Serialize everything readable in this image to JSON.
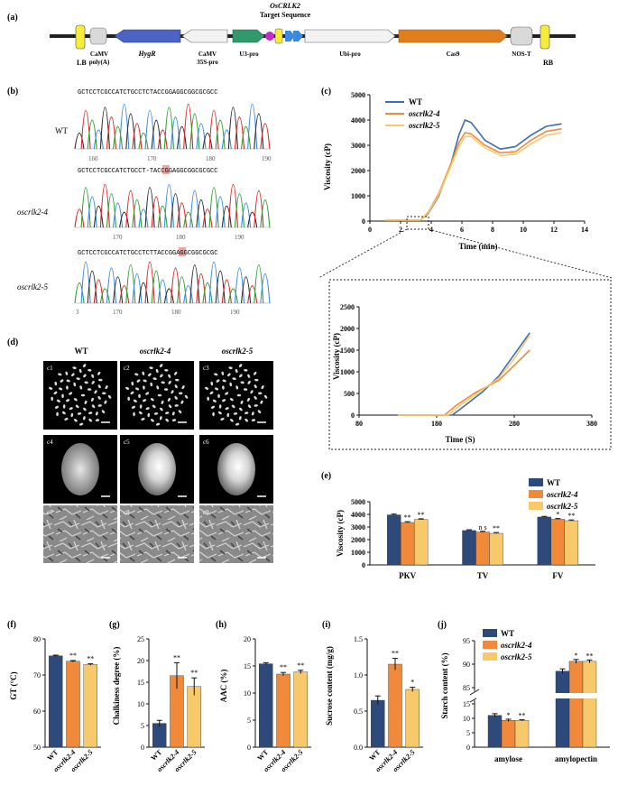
{
  "panel_labels": {
    "a": "(a)",
    "b": "(b)",
    "c": "(c)",
    "d": "(d)",
    "e": "(e)",
    "f": "(f)",
    "g": "(g)",
    "h": "(h)",
    "i": "(i)",
    "j": "(j)"
  },
  "construct": {
    "title1": "OsCRLK2",
    "title2": "Target Sequence",
    "LB": "LB",
    "RB": "RB",
    "camv_polyA_1": "CaMV",
    "camv_polyA_2": "poly(A)",
    "hygr": "HygR",
    "camv35s_1": "CaMV",
    "camv35s_2": "35S-pro",
    "u3": "U3-pro",
    "ubi": "Ubi-pro",
    "cas9": "Cas9",
    "nost": "NOS-T"
  },
  "sequencing": {
    "rows": [
      {
        "label": "WT",
        "seq": "GCTCCTCGCCATCTGCCTCTACCGGAGGCGGCGCGCC",
        "ticks": [
          "160",
          "170",
          "180",
          "190"
        ]
      },
      {
        "label": "oscrlk2-4",
        "seq": "GCTCCTCGCCATCTGCCT-TACCGGAGGCGGCGCGCC",
        "mark": "-",
        "ticks": [
          "170",
          "180",
          "190"
        ]
      },
      {
        "label": "oscrlk2-5",
        "seq": "GCTCCTCGCCATCTGCCTCTTACCGGAGGCGGCGCGC",
        "mark": "T",
        "ticks": [
          "3",
          "170",
          "180",
          "190"
        ]
      }
    ]
  },
  "images": {
    "headers": [
      "WT",
      "oscrlk2-4",
      "oscrlk2-5"
    ],
    "tags": [
      "c1",
      "c2",
      "c3",
      "c4",
      "c5",
      "c6",
      "c7",
      "c8",
      "c9"
    ]
  },
  "chart_data": [
    {
      "id": "c",
      "type": "line",
      "xlabel": "Time (min)",
      "ylabel": "Viscosity (cP)",
      "xlim": [
        0,
        14
      ],
      "ylim": [
        0,
        5000
      ],
      "xticks": [
        "0",
        "2",
        "4",
        "6",
        "8",
        "10",
        "12",
        "14"
      ],
      "yticks": [
        "0",
        "1000",
        "2000",
        "3000",
        "4000",
        "5000"
      ],
      "legend": [
        "WT",
        "oscrlk2-4",
        "oscrlk2-5"
      ],
      "colors": [
        "#3a6db5",
        "#f08a3a",
        "#f7c96a"
      ],
      "series": [
        {
          "name": "WT",
          "x": [
            1,
            3.3,
            3.8,
            4.5,
            5.3,
            5.8,
            6.2,
            6.6,
            7.5,
            8.5,
            9.5,
            10.5,
            11.5,
            12.5
          ],
          "y": [
            40,
            40,
            300,
            1000,
            2300,
            3400,
            4000,
            3900,
            3200,
            2850,
            2950,
            3400,
            3750,
            3850
          ]
        },
        {
          "name": "oscrlk2-4",
          "x": [
            1,
            3.3,
            3.8,
            4.5,
            5.3,
            5.8,
            6.2,
            6.6,
            7.5,
            8.5,
            9.5,
            10.5,
            11.5,
            12.5
          ],
          "y": [
            40,
            40,
            350,
            1100,
            2300,
            3100,
            3500,
            3450,
            3000,
            2700,
            2750,
            3200,
            3550,
            3650
          ]
        },
        {
          "name": "oscrlk2-5",
          "x": [
            1,
            3.3,
            3.8,
            4.5,
            5.3,
            5.8,
            6.2,
            6.6,
            7.5,
            8.5,
            9.5,
            10.5,
            11.5,
            12.5
          ],
          "y": [
            40,
            40,
            330,
            1050,
            2200,
            2950,
            3350,
            3350,
            2900,
            2600,
            2650,
            3050,
            3400,
            3500
          ]
        }
      ]
    },
    {
      "id": "c_zoom",
      "type": "line",
      "xlabel": "Time (S)",
      "ylabel": "Viscosity (cP)",
      "xlim": [
        80,
        380
      ],
      "ylim": [
        0,
        2500
      ],
      "xticks": [
        "80",
        "180",
        "280",
        "380"
      ],
      "yticks": [
        "0",
        "500",
        "1000",
        "1500",
        "2000",
        "2500"
      ],
      "series": [
        {
          "name": "WT",
          "x": [
            130,
            200,
            215,
            240,
            260,
            280,
            300
          ],
          "y": [
            0,
            0,
            200,
            550,
            900,
            1400,
            1900
          ]
        },
        {
          "name": "oscrlk2-4",
          "x": [
            130,
            190,
            205,
            230,
            260,
            280,
            300
          ],
          "y": [
            0,
            0,
            220,
            520,
            800,
            1150,
            1500
          ]
        },
        {
          "name": "oscrlk2-5",
          "x": [
            130,
            195,
            210,
            235,
            260,
            280,
            300
          ],
          "y": [
            0,
            0,
            220,
            540,
            850,
            1300,
            1850
          ]
        }
      ]
    },
    {
      "id": "e",
      "type": "bar",
      "ylabel": "Viscosity (cP)",
      "ylim": [
        0,
        5000
      ],
      "yticks": [
        "0",
        "1000",
        "2000",
        "3000",
        "4000",
        "5000"
      ],
      "categories": [
        "PKV",
        "TV",
        "FV"
      ],
      "legend": [
        "WT",
        "oscrlk2-4",
        "oscrlk2-5"
      ],
      "series": [
        {
          "name": "WT",
          "values": [
            3960,
            2720,
            3790
          ],
          "err": [
            60,
            60,
            50
          ],
          "sig": [
            "",
            "",
            ""
          ]
        },
        {
          "name": "oscrlk2-4",
          "values": [
            3360,
            2600,
            3610
          ],
          "err": [
            60,
            60,
            60
          ],
          "sig": [
            "**",
            "n s",
            "*"
          ]
        },
        {
          "name": "oscrlk2-5",
          "values": [
            3590,
            2500,
            3500
          ],
          "err": [
            60,
            60,
            60
          ],
          "sig": [
            "**",
            "**",
            "**"
          ]
        }
      ]
    },
    {
      "id": "f",
      "type": "bar",
      "ylabel": "GT (°C)",
      "ylim": [
        50,
        80
      ],
      "yticks": [
        "50",
        "60",
        "70",
        "80"
      ],
      "categories": [
        "WT",
        "oscrlk2-4",
        "oscrlk2-5"
      ],
      "values": [
        75.3,
        73.8,
        72.9
      ],
      "err": [
        0.2,
        0.2,
        0.2
      ],
      "sig": [
        "",
        "**",
        "**"
      ]
    },
    {
      "id": "g",
      "type": "bar",
      "ylabel": "Chalkiness degree (%)",
      "ylim": [
        0,
        25
      ],
      "yticks": [
        "0",
        "5",
        "10",
        "15",
        "20",
        "25"
      ],
      "categories": [
        "WT",
        "oscrlk2-4",
        "oscrlk2-5"
      ],
      "values": [
        5.5,
        16.5,
        14
      ],
      "err": [
        0.7,
        3,
        2
      ],
      "sig": [
        "",
        "**",
        "**"
      ]
    },
    {
      "id": "h",
      "type": "bar",
      "ylabel": "AAC (%)",
      "ylim": [
        0,
        20
      ],
      "yticks": [
        "0",
        "5",
        "10",
        "15",
        "20"
      ],
      "categories": [
        "WT",
        "oscrlk2-4",
        "oscrlk2-5"
      ],
      "values": [
        15.4,
        13.5,
        13.9
      ],
      "err": [
        0.2,
        0.3,
        0.3
      ],
      "sig": [
        "",
        "**",
        "**"
      ]
    },
    {
      "id": "i",
      "type": "bar",
      "ylabel": "Sucrose content (mg/g)",
      "ylim": [
        0,
        1.5
      ],
      "yticks": [
        "0.0",
        "0.5",
        "1.0",
        "1.5"
      ],
      "categories": [
        "WT",
        "oscrlk2-4",
        "oscrlk2-5"
      ],
      "values": [
        0.65,
        1.15,
        0.8
      ],
      "err": [
        0.06,
        0.08,
        0.03
      ],
      "sig": [
        "",
        "**",
        "*"
      ]
    },
    {
      "id": "j",
      "type": "bar",
      "ylabel": "Starch content (%)",
      "yticks": [
        "0",
        "5",
        "10",
        "15",
        "85",
        "90",
        "95"
      ],
      "categories": [
        "amylose",
        "amylopectin"
      ],
      "legend": [
        "WT",
        "oscrlk2-4",
        "oscrlk2-5"
      ],
      "series": [
        {
          "name": "WT",
          "values": [
            11,
            88.5
          ],
          "err": [
            0.6,
            0.5
          ],
          "sig": [
            "",
            ""
          ]
        },
        {
          "name": "oscrlk2-4",
          "values": [
            9.3,
            90.6
          ],
          "err": [
            0.4,
            0.4
          ],
          "sig": [
            "*",
            "*"
          ]
        },
        {
          "name": "oscrlk2-5",
          "values": [
            9.3,
            90.6
          ],
          "err": [
            0.2,
            0.3
          ],
          "sig": [
            "**",
            "**"
          ]
        }
      ]
    }
  ]
}
